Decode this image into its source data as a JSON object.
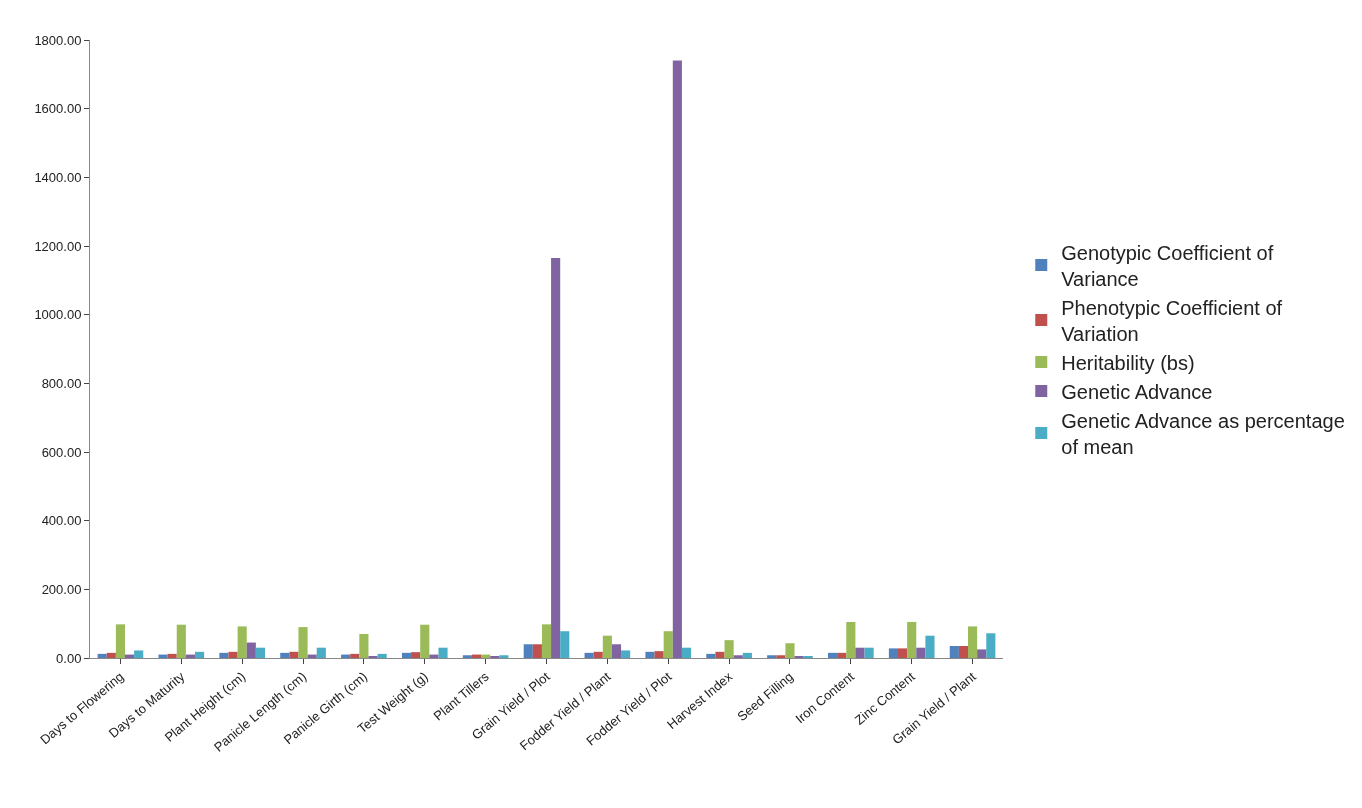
{
  "chart_data": {
    "type": "bar",
    "categories": [
      "Days to Flowering",
      "Days to Maturity",
      "Plant Height (cm)",
      "Panicle Length (cm)",
      "Panicle Girth (cm)",
      "Test Weight (g)",
      "Plant Tillers",
      "Grain Yield / Plot",
      "Fodder Yield / Plant",
      "Fodder Yield / Plot",
      "Harvest Index",
      "Seed Filling",
      "Iron Content",
      "Zinc Content",
      "Grain Yield / Plant"
    ],
    "series": [
      {
        "name": "Genotypic Coefficient of Variance",
        "color": "#4f81bd",
        "values": [
          12,
          10,
          15,
          15,
          10,
          15,
          8,
          40,
          15,
          18,
          12,
          8,
          15,
          28,
          35
        ]
      },
      {
        "name": "Phenotypic Coefficient of Variation",
        "color": "#c0504d",
        "values": [
          15,
          12,
          18,
          18,
          12,
          17,
          10,
          40,
          18,
          20,
          18,
          8,
          15,
          28,
          35
        ]
      },
      {
        "name": "Heritability (bs)",
        "color": "#9bbb59",
        "values": [
          98,
          97,
          92,
          90,
          70,
          97,
          10,
          98,
          65,
          78,
          52,
          43,
          105,
          105,
          92
        ]
      },
      {
        "name": "Genetic Advance",
        "color": "#8064a2",
        "values": [
          10,
          10,
          45,
          10,
          3,
          10,
          3,
          1165,
          40,
          1740,
          8,
          5,
          30,
          30,
          25
        ]
      },
      {
        "name": "Genetic Advance as percentage of mean",
        "color": "#4bacc6",
        "values": [
          22,
          18,
          30,
          30,
          12,
          30,
          8,
          78,
          22,
          30,
          15,
          5,
          30,
          65,
          72
        ]
      }
    ],
    "ylim": [
      0,
      1800
    ],
    "yticks": [
      {
        "value": 0,
        "label": "0.00"
      },
      {
        "value": 200,
        "label": "200.00"
      },
      {
        "value": 400,
        "label": "400.00"
      },
      {
        "value": 600,
        "label": "600.00"
      },
      {
        "value": 800,
        "label": "800.00"
      },
      {
        "value": 1000,
        "label": "1000.00"
      },
      {
        "value": 1200,
        "label": "1200.00"
      },
      {
        "value": 1400,
        "label": "1400.00"
      },
      {
        "value": 1600,
        "label": "1600.00"
      },
      {
        "value": 1800,
        "label": "1800.00"
      }
    ],
    "legend": "right"
  }
}
